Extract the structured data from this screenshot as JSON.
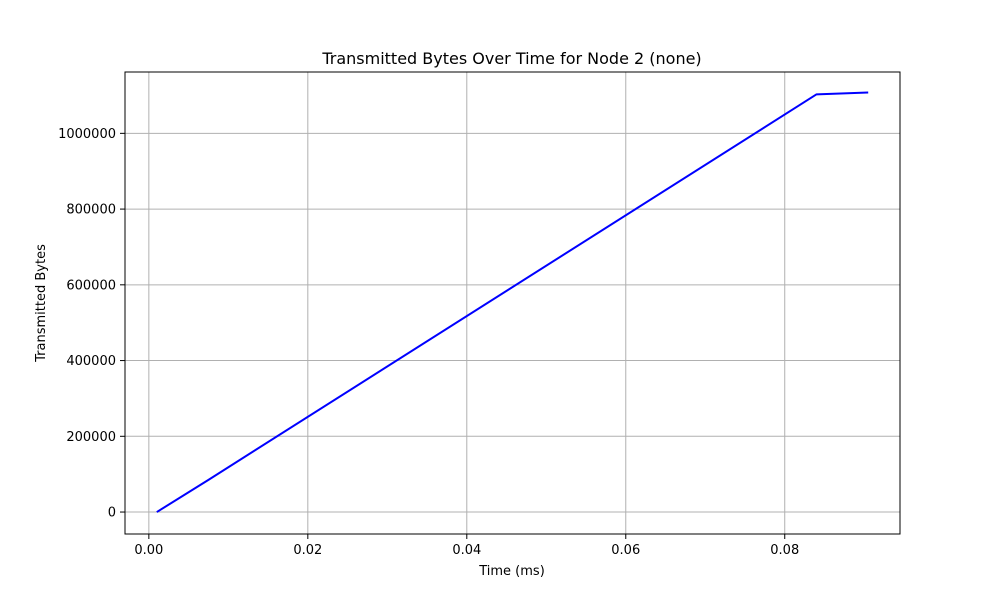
{
  "chart_data": {
    "type": "line",
    "title": "Transmitted Bytes Over Time for Node 2 (none)",
    "xlabel": "Time (ms)",
    "ylabel": "Transmitted Bytes",
    "xlim": [
      -0.003,
      0.0945
    ],
    "ylim": [
      -58000,
      1162000
    ],
    "xticks": [
      0.0,
      0.02,
      0.04,
      0.06,
      0.08
    ],
    "xtick_labels": [
      "0.00",
      "0.02",
      "0.04",
      "0.06",
      "0.08"
    ],
    "yticks": [
      0,
      200000,
      400000,
      600000,
      800000,
      1000000
    ],
    "ytick_labels": [
      "0",
      "200000",
      "400000",
      "600000",
      "800000",
      "1000000"
    ],
    "grid": true,
    "series": [
      {
        "color": "#0000ff",
        "x": [
          0.001,
          0.0075,
          0.084,
          0.0905
        ],
        "y": [
          0,
          85000,
          1103000,
          1108000
        ]
      }
    ]
  }
}
